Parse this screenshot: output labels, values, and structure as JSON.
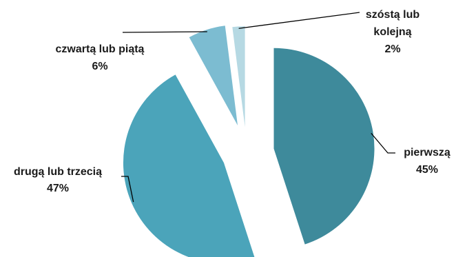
{
  "chart_data": {
    "type": "pie",
    "title": "",
    "slices": [
      {
        "label": "pierwszą",
        "value": 45,
        "value_label": "45%",
        "color": "#3e8a9b"
      },
      {
        "label": "drugą lub trzecią",
        "value": 47,
        "value_label": "47%",
        "color": "#4ba4ba"
      },
      {
        "label": "czwartą lub piątą",
        "value": 6,
        "value_label": "6%",
        "color": "#7cbcd1"
      },
      {
        "label_lines": [
          "szóstą lub",
          "kolejną"
        ],
        "value": 2,
        "value_label": "2%",
        "color": "#b6d9e3"
      }
    ],
    "exploded": true,
    "legend": "none"
  }
}
